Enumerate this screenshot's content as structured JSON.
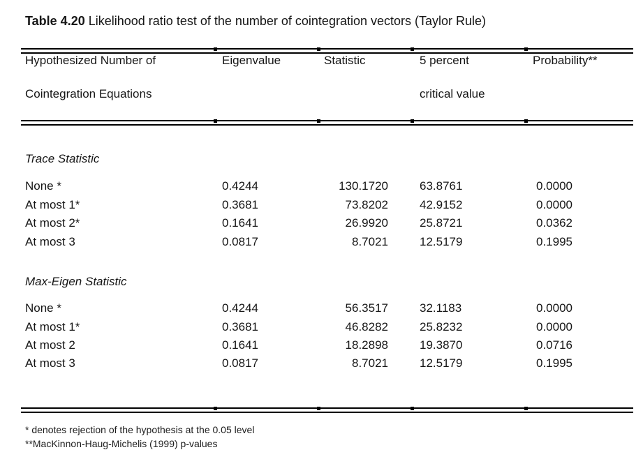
{
  "title": {
    "label": "Table 4.20",
    "text": "Likelihood ratio test of the number of cointegration vectors (Taylor Rule)"
  },
  "table": {
    "header": {
      "hypothesis_line1": "Hypothesized Number of",
      "hypothesis_line2": "Cointegration Equations",
      "eigenvalue": "Eigenvalue",
      "statistic": "Statistic",
      "critical_line1": "5 percent",
      "critical_line2": "critical value",
      "probability": "Probability**"
    },
    "sections": [
      {
        "heading": "Trace Statistic",
        "rows": [
          {
            "hypothesis": "None *",
            "eigenvalue": "0.4244",
            "statistic": "130.1720",
            "critical_value": "63.8761",
            "probability": "0.0000"
          },
          {
            "hypothesis": "At most 1*",
            "eigenvalue": "0.3681",
            "statistic": "73.8202",
            "critical_value": "42.9152",
            "probability": "0.0000"
          },
          {
            "hypothesis": "At most 2*",
            "eigenvalue": "0.1641",
            "statistic": "26.9920",
            "critical_value": "25.8721",
            "probability": "0.0362"
          },
          {
            "hypothesis": "At most 3",
            "eigenvalue": "0.0817",
            "statistic": "8.7021",
            "critical_value": "12.5179",
            "probability": "0.1995"
          }
        ]
      },
      {
        "heading": "Max-Eigen Statistic",
        "rows": [
          {
            "hypothesis": "None *",
            "eigenvalue": "0.4244",
            "statistic": "56.3517",
            "critical_value": "32.1183",
            "probability": "0.0000"
          },
          {
            "hypothesis": "At most 1*",
            "eigenvalue": "0.3681",
            "statistic": "46.8282",
            "critical_value": "25.8232",
            "probability": "0.0000"
          },
          {
            "hypothesis": "At most 2",
            "eigenvalue": "0.1641",
            "statistic": "18.2898",
            "critical_value": "19.3870",
            "probability": "0.0716"
          },
          {
            "hypothesis": "At most 3",
            "eigenvalue": "0.0817",
            "statistic": "8.7021",
            "critical_value": "12.5179",
            "probability": "0.1995"
          }
        ]
      }
    ]
  },
  "footnotes": {
    "note1": "* denotes rejection of the hypothesis at the 0.05 level",
    "note2": "**MacKinnon-Haug-Michelis (1999) p-values"
  }
}
